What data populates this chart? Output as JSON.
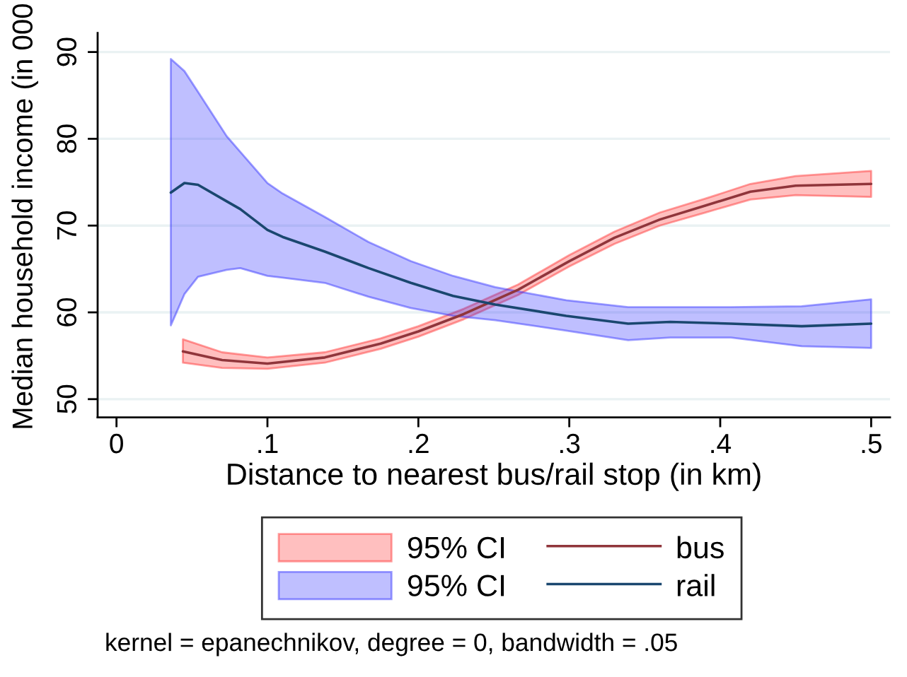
{
  "chart_data": {
    "type": "line",
    "xlabel": "Distance to nearest bus/rail stop (in km)",
    "ylabel": "Median household income (in 000",
    "xlim": [
      -0.0125,
      0.5125
    ],
    "ylim": [
      47.9,
      92.2
    ],
    "xticks": [
      0,
      {
        "value": 0.1,
        "label": ".1"
      },
      {
        "value": 0.2,
        "label": ".2"
      },
      {
        "value": 0.3,
        "label": ".3"
      },
      {
        "value": 0.4,
        "label": ".4"
      },
      {
        "value": 0.5,
        "label": ".5"
      }
    ],
    "yticks": [
      50,
      60,
      70,
      80,
      90
    ],
    "grid": "y",
    "legend": "bottom",
    "annotations": [
      "kernel = epanechnikov, degree = 0, bandwidth = .05"
    ],
    "series": [
      {
        "name": "95% CI",
        "type": "area",
        "color": "#ffbfbf"
      },
      {
        "name": "bus",
        "color": "#90353b",
        "x": [
          0.044,
          0.07,
          0.1,
          0.138,
          0.175,
          0.2,
          0.23,
          0.266,
          0.3,
          0.33,
          0.36,
          0.39,
          0.42,
          0.45,
          0.5
        ],
        "values": [
          55.5,
          54.5,
          54.1,
          54.8,
          56.4,
          57.8,
          59.8,
          62.6,
          65.9,
          68.6,
          70.7,
          72.3,
          73.9,
          74.6,
          74.8
        ],
        "lower": [
          54.2,
          53.6,
          53.5,
          54.2,
          55.8,
          57.2,
          59.2,
          62.0,
          65.3,
          67.9,
          70.0,
          71.5,
          73.0,
          73.5,
          73.3
        ],
        "upper": [
          56.9,
          55.4,
          54.8,
          55.4,
          57.0,
          58.4,
          60.4,
          63.2,
          66.6,
          69.3,
          71.5,
          73.1,
          74.8,
          75.7,
          76.3
        ]
      },
      {
        "name": "95% CI",
        "type": "area",
        "color": "#bfbfff"
      },
      {
        "name": "rail",
        "color": "#1a476f",
        "x": [
          0.036,
          0.045,
          0.054,
          0.073,
          0.082,
          0.1,
          0.11,
          0.138,
          0.167,
          0.195,
          0.223,
          0.251,
          0.298,
          0.339,
          0.367,
          0.407,
          0.454,
          0.5
        ],
        "values": [
          73.8,
          74.9,
          74.7,
          72.8,
          71.9,
          69.5,
          68.7,
          67.0,
          65.1,
          63.4,
          61.9,
          60.9,
          59.6,
          58.7,
          58.9,
          58.7,
          58.4,
          58.7
        ],
        "lower": [
          58.5,
          62.1,
          64.1,
          64.9,
          65.1,
          64.2,
          64.0,
          63.4,
          61.8,
          60.5,
          59.6,
          59.1,
          57.9,
          56.8,
          57.1,
          57.1,
          56.1,
          55.9
        ],
        "upper": [
          89.2,
          87.8,
          85.4,
          80.3,
          78.5,
          74.9,
          73.7,
          71.0,
          68.1,
          65.9,
          64.2,
          62.9,
          61.4,
          60.6,
          60.6,
          60.6,
          60.7,
          61.5
        ]
      }
    ]
  }
}
